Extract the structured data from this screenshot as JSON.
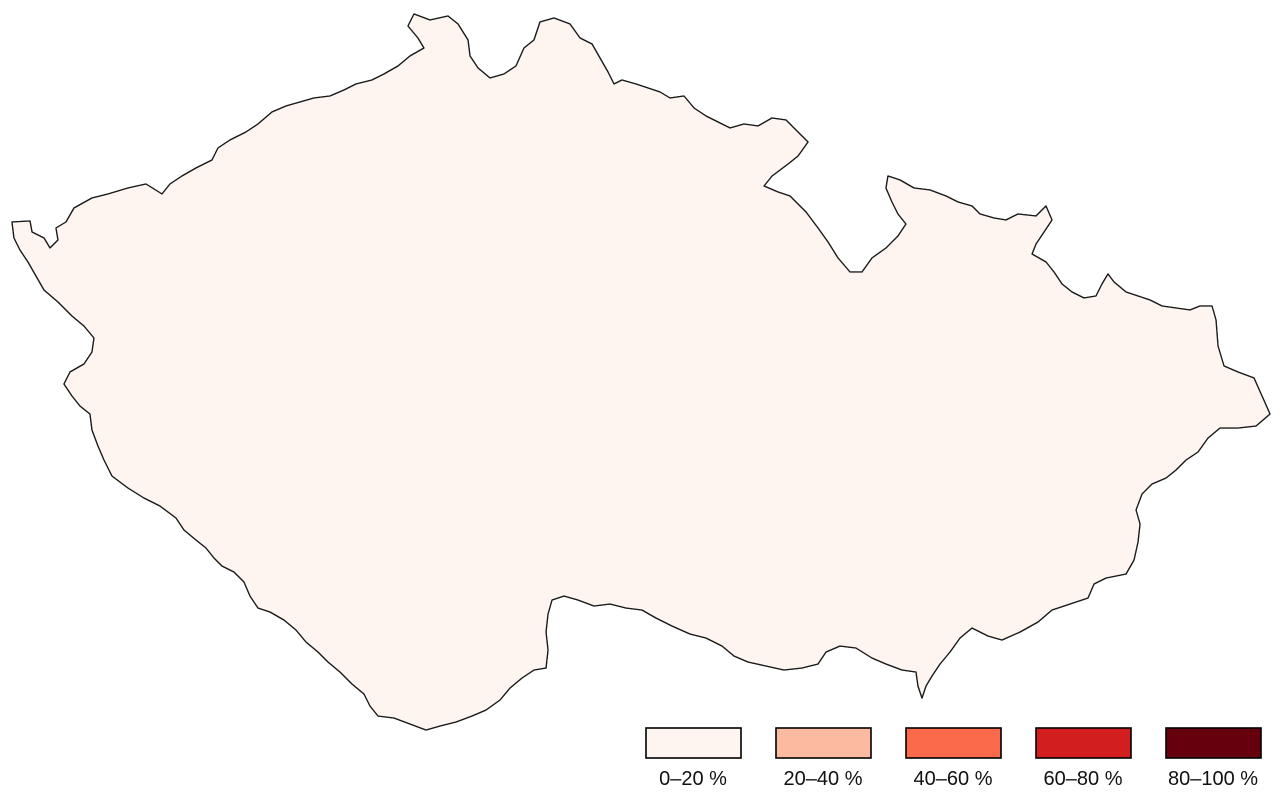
{
  "map": {
    "region": "Czech Republic",
    "classes": [
      {
        "label": "0–20 %",
        "color": "#fff5f0"
      },
      {
        "label": "20–40 %",
        "color": "#fcbba1"
      },
      {
        "label": "40–60 %",
        "color": "#fb6a4a"
      },
      {
        "label": "60–80 %",
        "color": "#d21e1e"
      },
      {
        "label": "80–100 %",
        "color": "#67000d"
      }
    ]
  }
}
